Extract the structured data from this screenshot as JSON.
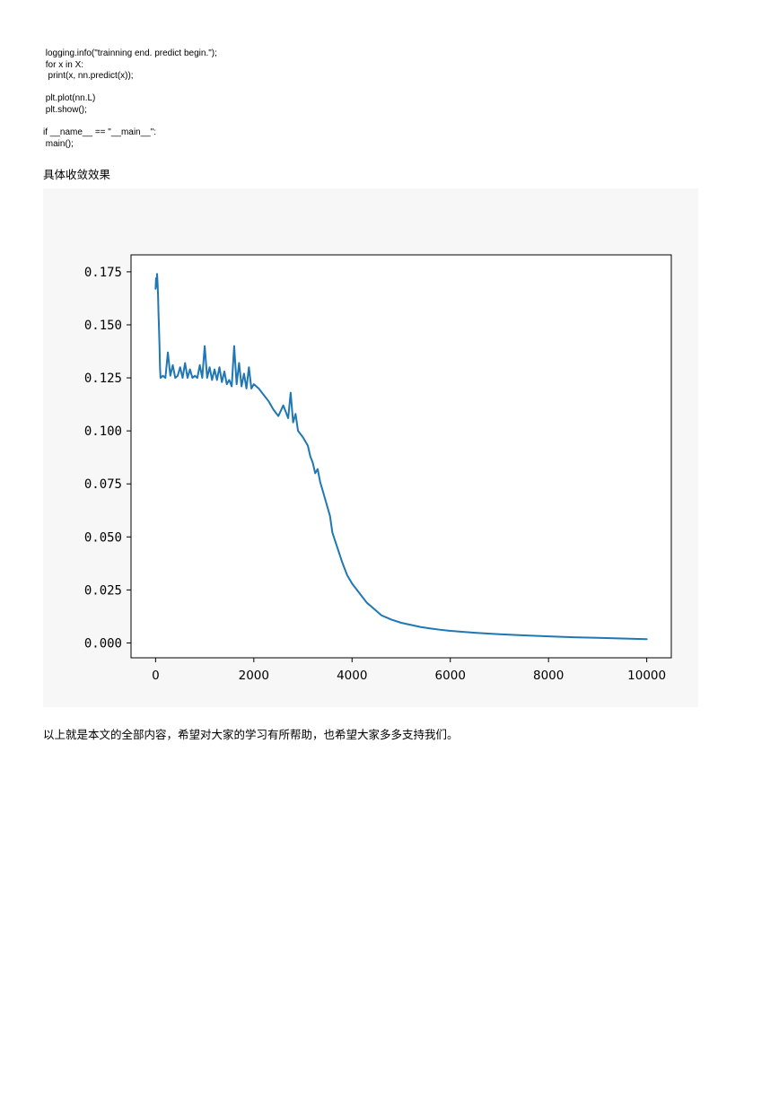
{
  "code": {
    "lines": [
      " logging.info(\"trainning end. predict begin.\");",
      " for x in X:",
      "  print(x, nn.predict(x));",
      "",
      " plt.plot(nn.L)",
      " plt.show();",
      "",
      "if __name__ == \"__main__\":",
      " main();"
    ]
  },
  "section_heading": "具体收敛效果",
  "closing_text": "以上就是本文的全部内容，希望对大家的学习有所帮助，也希望大家多多支持我们。",
  "chart_data": {
    "type": "line",
    "title": "",
    "xlabel": "",
    "ylabel": "",
    "xlim": [
      -500,
      10500
    ],
    "ylim": [
      -0.007,
      0.183
    ],
    "x_ticks": [
      0,
      2000,
      4000,
      6000,
      8000,
      10000
    ],
    "x_tick_labels": [
      "0",
      "2000",
      "4000",
      "6000",
      "8000",
      "10000"
    ],
    "y_ticks": [
      0.0,
      0.025,
      0.05,
      0.075,
      0.1,
      0.125,
      0.15,
      0.175
    ],
    "y_tick_labels": [
      "0.000",
      "0.025",
      "0.050",
      "0.075",
      "0.100",
      "0.125",
      "0.150",
      "0.175"
    ],
    "grid": false,
    "line_color": "#1f77b4",
    "series": [
      {
        "x": [
          0,
          10,
          20,
          30,
          40,
          50,
          60,
          70,
          80,
          90,
          100,
          150,
          200,
          250,
          300,
          350,
          400,
          450,
          500,
          550,
          600,
          650,
          700,
          750,
          800,
          850,
          900,
          950,
          1000,
          1050,
          1100,
          1150,
          1200,
          1250,
          1300,
          1350,
          1400,
          1450,
          1500,
          1550,
          1600,
          1650,
          1700,
          1750,
          1800,
          1850,
          1900,
          1950,
          2000,
          2100,
          2200,
          2300,
          2400,
          2500,
          2600,
          2700,
          2750,
          2800,
          2850,
          2900,
          3000,
          3100,
          3150,
          3200,
          3250,
          3300,
          3350,
          3400,
          3450,
          3500,
          3550,
          3600,
          3700,
          3800,
          3900,
          4000,
          4100,
          4200,
          4300,
          4400,
          4500,
          4600,
          4700,
          4800,
          5000,
          5200,
          5400,
          5600,
          5800,
          6000,
          6500,
          7000,
          7500,
          8000,
          8500,
          9000,
          9500,
          10000
        ],
        "y": [
          0.167,
          0.172,
          0.168,
          0.174,
          0.17,
          0.164,
          0.155,
          0.148,
          0.14,
          0.13,
          0.125,
          0.126,
          0.125,
          0.137,
          0.126,
          0.131,
          0.125,
          0.126,
          0.13,
          0.125,
          0.132,
          0.125,
          0.129,
          0.125,
          0.126,
          0.125,
          0.131,
          0.125,
          0.14,
          0.125,
          0.13,
          0.124,
          0.129,
          0.124,
          0.13,
          0.123,
          0.128,
          0.122,
          0.124,
          0.121,
          0.14,
          0.122,
          0.132,
          0.121,
          0.127,
          0.12,
          0.13,
          0.12,
          0.122,
          0.12,
          0.117,
          0.114,
          0.11,
          0.107,
          0.112,
          0.106,
          0.118,
          0.104,
          0.108,
          0.1,
          0.097,
          0.093,
          0.088,
          0.085,
          0.08,
          0.082,
          0.076,
          0.072,
          0.068,
          0.064,
          0.06,
          0.052,
          0.045,
          0.038,
          0.032,
          0.028,
          0.025,
          0.022,
          0.019,
          0.017,
          0.015,
          0.013,
          0.012,
          0.011,
          0.0095,
          0.0085,
          0.0075,
          0.0068,
          0.0062,
          0.0057,
          0.0048,
          0.0041,
          0.0036,
          0.0031,
          0.0027,
          0.0024,
          0.0021,
          0.0018
        ]
      }
    ]
  }
}
